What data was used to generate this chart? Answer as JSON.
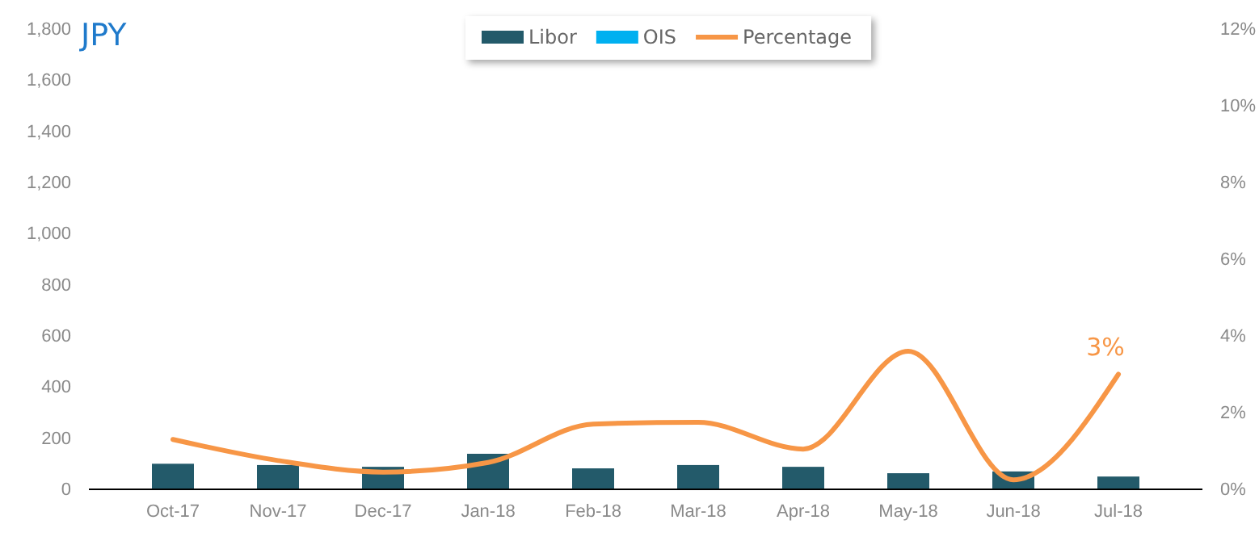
{
  "chart_data": {
    "type": "bar",
    "title": "JPY",
    "categories": [
      "Oct-17",
      "Nov-17",
      "Dec-17",
      "Jan-18",
      "Feb-18",
      "Mar-18",
      "Apr-18",
      "May-18",
      "Jun-18",
      "Jul-18"
    ],
    "series": [
      {
        "name": "Libor",
        "color": "#235a6a",
        "values": [
          100,
          95,
          88,
          139,
          82,
          95,
          88,
          63,
          70,
          50
        ]
      },
      {
        "name": "OIS",
        "color": "#00b0f0",
        "values": [
          0,
          0,
          0,
          0,
          0,
          0,
          0,
          0,
          0,
          0
        ]
      },
      {
        "name": "Percentage",
        "type": "line",
        "axis": "y2",
        "color": "#f79646",
        "values": [
          1.3,
          0.75,
          0.45,
          0.7,
          1.7,
          1.75,
          1.05,
          3.6,
          0.25,
          3
        ],
        "value_labels": [
          null,
          null,
          null,
          null,
          null,
          null,
          null,
          null,
          null,
          "3%"
        ]
      }
    ],
    "ylim": [
      0,
      1800
    ],
    "yticks": [
      {
        "value": 0,
        "label": "0"
      },
      {
        "value": 200,
        "label": "200"
      },
      {
        "value": 400,
        "label": "400"
      },
      {
        "value": 600,
        "label": "600"
      },
      {
        "value": 800,
        "label": "800"
      },
      {
        "value": 1000,
        "label": "1,000"
      },
      {
        "value": 1200,
        "label": "1,200"
      },
      {
        "value": 1400,
        "label": "1,400"
      },
      {
        "value": 1600,
        "label": "1,600"
      },
      {
        "value": 1800,
        "label": "1,800"
      }
    ],
    "y2lim": [
      0,
      12
    ],
    "y2ticks": [
      {
        "value": 0,
        "label": "0%"
      },
      {
        "value": 2,
        "label": "2%"
      },
      {
        "value": 4,
        "label": "4%"
      },
      {
        "value": 6,
        "label": "6%"
      },
      {
        "value": 8,
        "label": "8%"
      },
      {
        "value": 10,
        "label": "10%"
      },
      {
        "value": 12,
        "label": "12%"
      }
    ],
    "grid": false,
    "legend": "top"
  }
}
